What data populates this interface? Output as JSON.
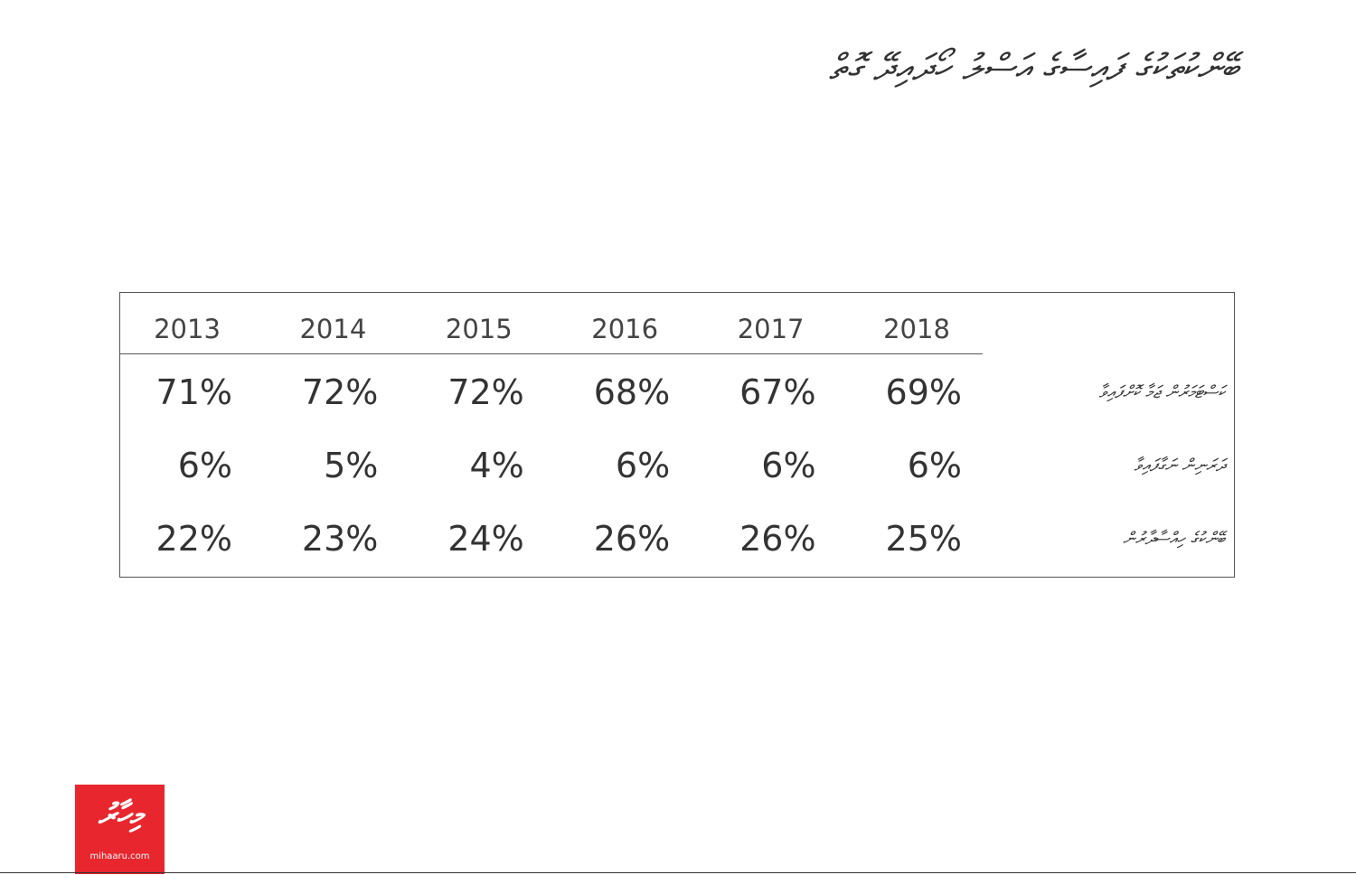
{
  "header": {
    "title": "ބޭންކުތަކުގެ ފައިސާގެ އަސްލު ހޯދައިދޭ ގޮތް"
  },
  "table": {
    "columns": [
      "2013",
      "2014",
      "2015",
      "2016",
      "2017",
      "2018"
    ],
    "rows": [
      {
        "label": "ކަސްޓަމަރުން ޖަމާ ކޮށްފައިވާ",
        "values": [
          "71%",
          "72%",
          "72%",
          "68%",
          "67%",
          "69%"
        ]
      },
      {
        "label": "ދަރަނިން ނަގާފައިވާ",
        "values": [
          "6%",
          "5%",
          "4%",
          "6%",
          "6%",
          "6%"
        ]
      },
      {
        "label": "ބޭންކުގެ ހިއްސާދާރުން",
        "values": [
          "22%",
          "23%",
          "24%",
          "26%",
          "26%",
          "25%"
        ]
      }
    ]
  },
  "logo": {
    "text": "މިހާރު",
    "url": "mihaaru.com"
  }
}
